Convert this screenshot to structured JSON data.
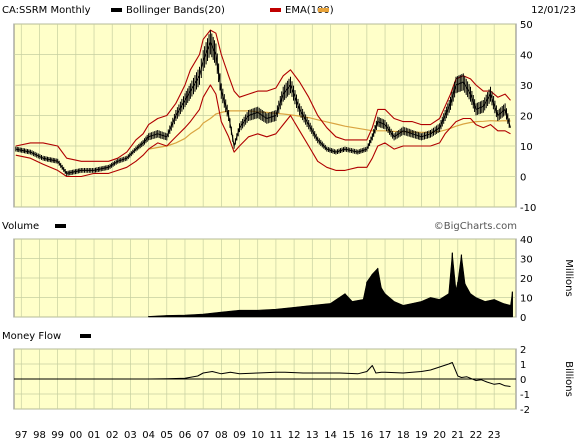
{
  "header": {
    "symbol": "CA:SSRM Monthly",
    "legend": [
      {
        "label": "Bollinger Bands(20)",
        "color": "#000000",
        "icon": "black-swatch"
      },
      {
        "label": "EMA(100)",
        "color": "#c00000",
        "icon": "red-swatch"
      },
      {
        "label": "",
        "color": "#e8a33a",
        "icon": "orange-swatch"
      }
    ],
    "date": "12/01/23"
  },
  "panels": {
    "volume_title": "Volume",
    "volume_units": "Millions",
    "watermark": "©BigCharts.com",
    "money_title": "Money Flow",
    "money_units": "Billions"
  },
  "colors": {
    "panel_bg": "#ffffc9",
    "grid": "#c6cfa0",
    "price": "#000000",
    "bands": "#b00000",
    "ema": "#d9a441",
    "volume": "#000000",
    "flow": "#000000"
  },
  "chart_data": [
    {
      "type": "line",
      "title": "CA:SSRM Monthly",
      "ylim": [
        -10,
        50
      ],
      "yticks": [
        -10,
        0,
        10,
        20,
        30,
        40,
        50
      ],
      "x_start": 1996.6,
      "x_end": 2024.2,
      "x": [
        1996.7,
        1997.5,
        1998.2,
        1999.0,
        1999.5,
        2000.3,
        2001.0,
        2001.8,
        2002.3,
        2002.8,
        2003.3,
        2003.7,
        2004.0,
        2004.5,
        2005.0,
        2005.5,
        2006.0,
        2006.3,
        2006.8,
        2007.0,
        2007.4,
        2007.7,
        2008.0,
        2008.4,
        2008.7,
        2009.0,
        2009.5,
        2010.0,
        2010.5,
        2011.0,
        2011.4,
        2011.8,
        2012.3,
        2012.8,
        2013.3,
        2013.8,
        2014.3,
        2014.8,
        2015.5,
        2016.0,
        2016.3,
        2016.6,
        2017.0,
        2017.5,
        2018.0,
        2018.5,
        2019.0,
        2019.5,
        2020.0,
        2020.3,
        2020.6,
        2020.9,
        2021.3,
        2021.7,
        2022.0,
        2022.4,
        2022.8,
        2023.2,
        2023.6,
        2023.9
      ],
      "series": [
        {
          "values": [
            9,
            8,
            6,
            5,
            1,
            2,
            2,
            3,
            5,
            6,
            9,
            11,
            13,
            14,
            13,
            20,
            25,
            28,
            33,
            38,
            44,
            40,
            28,
            20,
            10,
            16,
            20,
            21,
            19,
            20,
            27,
            30,
            22,
            17,
            12,
            9,
            8,
            9,
            8,
            9,
            13,
            18,
            17,
            13,
            15,
            14,
            13,
            14,
            16,
            20,
            24,
            30,
            31,
            27,
            22,
            23,
            27,
            20,
            22,
            16
          ]
        },
        {
          "values": [
            10,
            11,
            11,
            10,
            6,
            5,
            5,
            5,
            6,
            8,
            12,
            14,
            17,
            19,
            20,
            24,
            30,
            35,
            40,
            45,
            48,
            47,
            40,
            33,
            28,
            26,
            27,
            28,
            28,
            29,
            33,
            35,
            31,
            26,
            20,
            16,
            13,
            12,
            12,
            12,
            16,
            22,
            22,
            19,
            18,
            18,
            17,
            17,
            19,
            23,
            27,
            32,
            33,
            32,
            30,
            28,
            28,
            26,
            27,
            25
          ]
        },
        {
          "values": [
            7,
            6,
            4,
            2,
            0,
            0,
            1,
            1,
            2,
            3,
            5,
            7,
            9,
            11,
            10,
            13,
            16,
            18,
            22,
            26,
            30,
            27,
            18,
            13,
            8,
            10,
            13,
            14,
            13,
            14,
            17,
            20,
            15,
            10,
            5,
            3,
            2,
            2,
            3,
            3,
            6,
            10,
            11,
            9,
            10,
            10,
            10,
            10,
            11,
            14,
            16,
            18,
            19,
            19,
            17,
            16,
            17,
            15,
            15,
            14
          ]
        },
        {
          "values": [
            null,
            null,
            null,
            null,
            null,
            null,
            null,
            null,
            null,
            null,
            null,
            null,
            9,
            9.5,
            10,
            11,
            12.5,
            14,
            16,
            17.5,
            19,
            20.5,
            21,
            21.5,
            21.5,
            21.5,
            21.5,
            21.2,
            21,
            20.7,
            20.5,
            20.2,
            19.8,
            19.3,
            18.6,
            17.9,
            17.2,
            16.5,
            15.8,
            15.3,
            15,
            15,
            15,
            14.8,
            14.7,
            14.6,
            14.5,
            14.5,
            14.8,
            15.2,
            15.8,
            16.5,
            17.2,
            17.7,
            18,
            18.1,
            18.3,
            18.2,
            18.3,
            18.2
          ]
        }
      ]
    },
    {
      "type": "area",
      "title": "Volume",
      "ylabel": "Millions",
      "ylim": [
        0,
        40
      ],
      "yticks": [
        0,
        10,
        20,
        30,
        40
      ],
      "x": [
        2004.0,
        2005.0,
        2006.0,
        2007.0,
        2008.0,
        2009.0,
        2010.0,
        2011.0,
        2012.0,
        2013.0,
        2014.0,
        2014.8,
        2015.2,
        2015.8,
        2016.0,
        2016.3,
        2016.6,
        2016.8,
        2017.0,
        2017.5,
        2018.0,
        2018.5,
        2019.0,
        2019.5,
        2020.0,
        2020.5,
        2020.7,
        2020.9,
        2021.0,
        2021.2,
        2021.4,
        2021.7,
        2022.0,
        2022.5,
        2023.0,
        2023.5,
        2023.9,
        2024.0
      ],
      "values": [
        0.3,
        0.8,
        1.0,
        1.5,
        2.5,
        3.5,
        3.5,
        4.0,
        5.0,
        6.0,
        7.0,
        12,
        8,
        9,
        18,
        22,
        25,
        15,
        12,
        8,
        6,
        7,
        8,
        10,
        9,
        12,
        33,
        14,
        18,
        32,
        17,
        12,
        10,
        8,
        9,
        7,
        6,
        13
      ]
    },
    {
      "type": "line",
      "title": "Money Flow",
      "ylabel": "Billions",
      "ylim": [
        -2,
        2
      ],
      "yticks": [
        -2,
        -1,
        0,
        1,
        2
      ],
      "x": [
        2004.0,
        2005.0,
        2006.0,
        2006.7,
        2007.0,
        2007.5,
        2008.0,
        2008.5,
        2009.0,
        2010.0,
        2011.0,
        2011.5,
        2012.5,
        2013.5,
        2014.5,
        2015.5,
        2016.0,
        2016.3,
        2016.5,
        2016.8,
        2017.0,
        2018.0,
        2019.0,
        2019.5,
        2020.0,
        2020.5,
        2020.7,
        2020.9,
        2021.0,
        2021.2,
        2021.5,
        2022.0,
        2022.3,
        2022.6,
        2023.0,
        2023.3,
        2023.6,
        2023.9
      ],
      "values": [
        0,
        0.02,
        0.05,
        0.2,
        0.4,
        0.5,
        0.35,
        0.45,
        0.35,
        0.4,
        0.45,
        0.45,
        0.4,
        0.4,
        0.4,
        0.35,
        0.5,
        0.9,
        0.4,
        0.45,
        0.45,
        0.4,
        0.5,
        0.6,
        0.8,
        1.0,
        1.1,
        0.5,
        0.2,
        0.1,
        0.15,
        -0.1,
        -0.05,
        -0.2,
        -0.35,
        -0.3,
        -0.45,
        -0.5
      ]
    }
  ],
  "x_axis": {
    "labels": [
      "97",
      "98",
      "99",
      "00",
      "01",
      "02",
      "03",
      "04",
      "05",
      "06",
      "07",
      "08",
      "09",
      "10",
      "11",
      "12",
      "13",
      "14",
      "15",
      "16",
      "17",
      "18",
      "19",
      "20",
      "21",
      "22",
      "23"
    ]
  }
}
